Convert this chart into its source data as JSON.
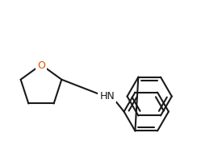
{
  "bg_color": "#ffffff",
  "line_color": "#1a1a1a",
  "o_color": "#e05000",
  "nh_color": "#1a1a1a",
  "lw": 1.5,
  "font_o": 9,
  "font_nh": 9
}
